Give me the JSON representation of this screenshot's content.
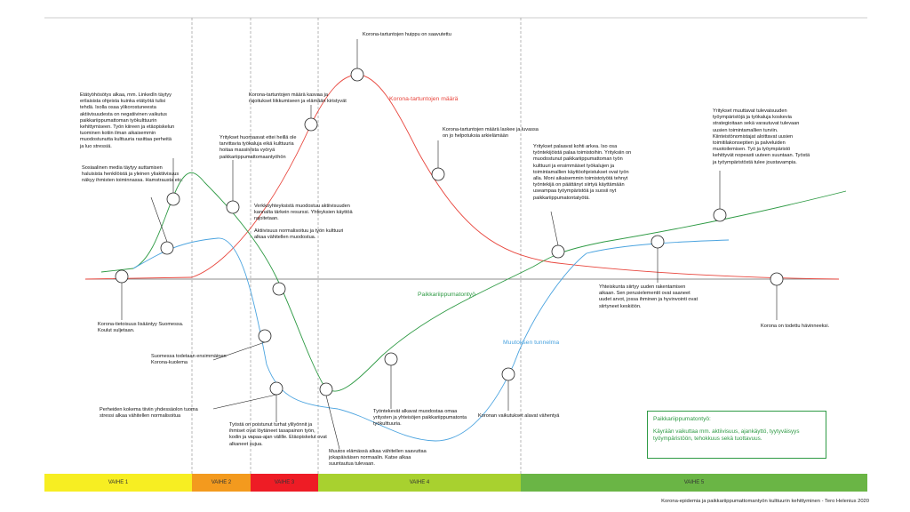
{
  "series": {
    "red": {
      "name": "Korona-tartuntojen määrä",
      "color": "#e8453c"
    },
    "green": {
      "name": "Paikkariippumatontyö",
      "color": "#2e9a44"
    },
    "blue": {
      "name": "Muutoksen tunnelma",
      "color": "#4aa3df"
    }
  },
  "notes": [
    {
      "id": "peak",
      "text": "Korona-tartuntojen huippu on saavutettu"
    },
    {
      "id": "restrictions",
      "text": "Korona-tartuntojen määrä kasvaa ja\nrajoitukset liikkumiseen ja elämään kiristyvät"
    },
    {
      "id": "remote-start",
      "text": "Etätyöhösötys alkaa, mm. LinkedIn täytyy\nerilaisista ohjeista kuinka etätyötä tulisi\ntehdä. Isolla osaa ylikorostuneesta\naktiivisuudesta on negatiivinen vaikutus\npaikkariippumattoman työkulttuurin\nkehittymiseen. Työn kiireen ja etäopiskelun\ntuominen kotiin ilman aikaisemmin\nmuodostunutta kulttuuria rasittaa perheitä\nja luo stressiä."
    },
    {
      "id": "tools",
      "text": "Yritykset huomaavat ettei heillä ole\ntarvittavia työkaluja eikä kulttuuria\nhoitaa massiivista vyöryä\npaikkariippumattomaantyöhön"
    },
    {
      "id": "decline",
      "text": "Korona-tartuntojen määrä laskee ja luvassa\non jo helpotuksia arkielämään"
    },
    {
      "id": "some",
      "text": "Sosiaalinen media täytyy auttamisen\nhaluisista henkilöistä ja yleinen yliaktiivisuus\nnäkyy ihmisten toiminnassa. Hamstrausta etc."
    },
    {
      "id": "network",
      "text": "Verkkoyhteyksistä muodostuu aktiivisuuden\nkannalta tärkein resurssi. Yhteyksien käyttöä\nrajoitetaan."
    },
    {
      "id": "normalize",
      "text": "Aktiivisuus normalisoituu ja työn kulttuuri\nalkaa vähitellen muodostua."
    },
    {
      "id": "return",
      "text": "Yritykset palaavat kohti arkea. Iso osa\ntyöntekijöistä palaa toimistoihin. Yrityksiin on\nmuodostunut paikkariippumattoman työn\nkulttuuri ja ensimmäiset työkalujen ja\ntoimintamallien käyttöohjeistukset ovat työn\nalla. Moni aikaisemmin toimistotyötä tehnyt\ntyöntekijä on päättänyt siirtyä käyttämään\nuseampaa työympäristöä ja suosii nyt\npaikkariippumatontatyötä."
    },
    {
      "id": "future",
      "text": "Yritykset muuttavat tulevaisuuden\ntyöympäristöjä ja työkaluja koskevia\nstrategioitaan sekä varautuvat tulevaan\nuusien toimintamallien turviin.\nKiinteistönomistajat aloittavat uusien\ntoimitilakonseptien ja palveluiden\nmuotoilemisen. Työ ja työympäristö\nkehittyvät nopeasti uuteen suuntaan. Työstä\nja työympäristöstä tulee joustavampia."
    },
    {
      "id": "awareness",
      "text": "Korona-tietoisuus lisääntyy Suomessa.\nKoulut suljetaan."
    },
    {
      "id": "death",
      "text": "Suomessa todetaan ensimmäinen\nKorona-kuolema"
    },
    {
      "id": "family",
      "text": "Perheiden kokema tiiviin yhdessäolon tuoma\nstressi alkaa vähitellen normalisoitua"
    },
    {
      "id": "futile",
      "text": "Työstä on poistunut turhat ylilyönnit ja\nihmiset ovat löytäneet tasapainon työn,\nkodin ja vapaa-ajan välille. Etäopiskelut ovat\nalkaneet sujua."
    },
    {
      "id": "change",
      "text": "Muutos elämässä alkaa vähitellen saavuttaa\njokapäiväisen normaalin. Katse alkaa\nsuuntautua tulevaan."
    },
    {
      "id": "employees",
      "text": "Työntekevät alkavat muodostaa omaa\nyritysten ja yhteisöjen paikkariippumatonta\ntyökulttuuria."
    },
    {
      "id": "impacts",
      "text": "Koronan vaikutukset alavat vähentyä"
    },
    {
      "id": "society",
      "text": "Yhteiskunta siirtyy uuden rakentamisen\naikaan. Sen perusielementit ovat saaneet\nuudet arvot, jossa ihminen ja hyvinvointi ovat\nsiirtyneet keskiöön."
    },
    {
      "id": "gone",
      "text": "Korona on todettu hävinneeksi."
    }
  ],
  "legend": {
    "title": "Paikkariippumatontyö:",
    "text": "Käyrään vaikuttaa mm. aktiivisuus, ajankäyttö, tyytyväisyys\ntyöympäristöön, tehokkuus sekä tuottavuus."
  },
  "phases": [
    {
      "label": "VAIHE 1",
      "color": "#f7ee22"
    },
    {
      "label": "VAIHE 2",
      "color": "#f39a1e"
    },
    {
      "label": "VAIHE 3",
      "color": "#ee1c25"
    },
    {
      "label": "VAIHE 4",
      "color": "#a8d12f"
    },
    {
      "label": "VAIHE 5",
      "color": "#6ab545"
    }
  ],
  "credit": "Korona-epidemia ja paikkariippumattomantyön kulttuurin kehittyminen - Tero Helenius 2020"
}
